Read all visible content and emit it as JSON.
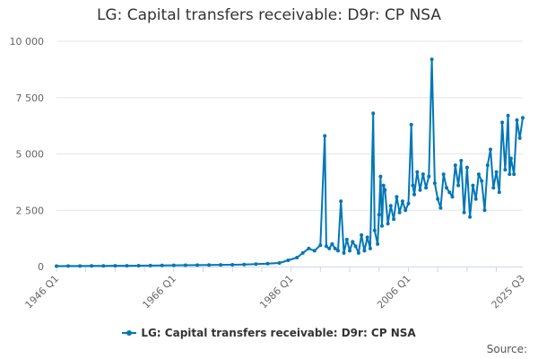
{
  "chart_data": {
    "type": "line",
    "title": "LG: Capital transfers receivable: D9r: CP NSA",
    "x_tick_labels": [
      "1946 Q1",
      "1966 Q1",
      "1986 Q1",
      "2006 Q1",
      "2025 Q3"
    ],
    "x_tick_positions": [
      1946.0,
      1966.0,
      1986.0,
      2006.0,
      2025.5
    ],
    "y_tick_labels": [
      "0",
      "2 500",
      "5 000",
      "7 500",
      "10 000"
    ],
    "ylim": [
      0,
      10000
    ],
    "xlim": [
      1946.0,
      2025.5
    ],
    "grid": true,
    "legend_position": "bottom",
    "source_label": "Source:",
    "series": [
      {
        "name": "LG: Capital transfers receivable: D9r: CP NSA",
        "color": "#0077b6",
        "x": [
          1946.0,
          1948.0,
          1950.0,
          1952.0,
          1954.0,
          1956.0,
          1958.0,
          1960.0,
          1962.0,
          1964.0,
          1966.0,
          1968.0,
          1970.0,
          1972.0,
          1974.0,
          1976.0,
          1978.0,
          1980.0,
          1982.0,
          1984.0,
          1985.5,
          1987.0,
          1988.0,
          1989.0,
          1990.0,
          1991.0,
          1991.75,
          1992.0,
          1992.5,
          1993.0,
          1993.5,
          1994.0,
          1994.5,
          1995.0,
          1995.5,
          1996.0,
          1996.5,
          1997.0,
          1997.5,
          1998.0,
          1998.5,
          1999.0,
          1999.5,
          2000.0,
          2000.25,
          2000.75,
          2001.0,
          2001.25,
          2001.5,
          2001.75,
          2002.0,
          2002.5,
          2003.0,
          2003.5,
          2004.0,
          2004.5,
          2005.0,
          2005.5,
          2006.0,
          2006.5,
          2006.75,
          2007.0,
          2007.5,
          2008.0,
          2008.5,
          2009.0,
          2009.5,
          2010.0,
          2010.5,
          2011.0,
          2011.5,
          2012.0,
          2012.5,
          2013.0,
          2013.5,
          2014.0,
          2014.5,
          2015.0,
          2015.5,
          2016.0,
          2016.5,
          2017.0,
          2017.5,
          2018.0,
          2018.5,
          2019.0,
          2019.5,
          2020.0,
          2020.5,
          2021.0,
          2021.5,
          2022.0,
          2022.5,
          2023.0,
          2023.25,
          2023.5,
          2024.0,
          2024.5,
          2025.0,
          2025.5
        ],
        "values": [
          20,
          25,
          25,
          30,
          30,
          35,
          35,
          40,
          45,
          50,
          55,
          60,
          65,
          70,
          75,
          80,
          90,
          110,
          130,
          160,
          280,
          400,
          600,
          800,
          700,
          950,
          5800,
          900,
          800,
          1000,
          800,
          700,
          2900,
          600,
          1200,
          700,
          1100,
          900,
          600,
          1400,
          700,
          1300,
          800,
          6800,
          1600,
          1000,
          2300,
          4000,
          1800,
          3600,
          3400,
          1900,
          2700,
          2100,
          3100,
          2400,
          2900,
          2500,
          2800,
          6300,
          3600,
          3200,
          4200,
          3400,
          4100,
          3500,
          4000,
          9200,
          3700,
          3000,
          2600,
          4100,
          3500,
          3300,
          3100,
          4500,
          3600,
          4700,
          2400,
          4400,
          2200,
          3600,
          3000,
          4100,
          3800,
          2500,
          4500,
          5200,
          3500,
          4200,
          3300,
          6400,
          4300,
          6700,
          4100,
          4800,
          4100,
          6500,
          5700,
          6600
        ]
      }
    ]
  }
}
